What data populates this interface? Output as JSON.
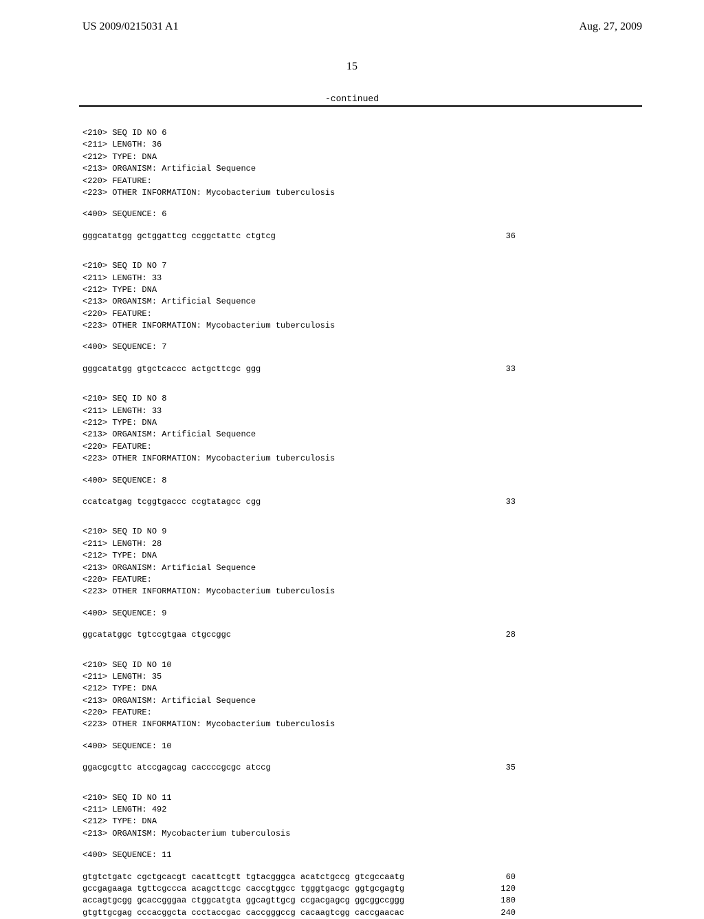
{
  "header": {
    "left": "US 2009/0215031 A1",
    "right": "Aug. 27, 2009"
  },
  "page_number": "15",
  "continued_text": "-continued",
  "blocks": [
    {
      "headers": [
        "<210> SEQ ID NO 6",
        "<211> LENGTH: 36",
        "<212> TYPE: DNA",
        "<213> ORGANISM: Artificial Sequence",
        "<220> FEATURE:",
        "<223> OTHER INFORMATION: Mycobacterium tuberculosis"
      ],
      "seq_label": "<400> SEQUENCE: 6",
      "rows": [
        {
          "text": "gggcatatgg gctggattcg ccggctattc ctgtcg",
          "len": "36"
        }
      ]
    },
    {
      "headers": [
        "<210> SEQ ID NO 7",
        "<211> LENGTH: 33",
        "<212> TYPE: DNA",
        "<213> ORGANISM: Artificial Sequence",
        "<220> FEATURE:",
        "<223> OTHER INFORMATION: Mycobacterium tuberculosis"
      ],
      "seq_label": "<400> SEQUENCE: 7",
      "rows": [
        {
          "text": "gggcatatgg gtgctcaccc actgcttcgc ggg",
          "len": "33"
        }
      ]
    },
    {
      "headers": [
        "<210> SEQ ID NO 8",
        "<211> LENGTH: 33",
        "<212> TYPE: DNA",
        "<213> ORGANISM: Artificial Sequence",
        "<220> FEATURE:",
        "<223> OTHER INFORMATION: Mycobacterium tuberculosis"
      ],
      "seq_label": "<400> SEQUENCE: 8",
      "rows": [
        {
          "text": "ccatcatgag tcggtgaccc ccgtatagcc cgg",
          "len": "33"
        }
      ]
    },
    {
      "headers": [
        "<210> SEQ ID NO 9",
        "<211> LENGTH: 28",
        "<212> TYPE: DNA",
        "<213> ORGANISM: Artificial Sequence",
        "<220> FEATURE:",
        "<223> OTHER INFORMATION: Mycobacterium tuberculosis"
      ],
      "seq_label": "<400> SEQUENCE: 9",
      "rows": [
        {
          "text": "ggcatatggc tgtccgtgaa ctgccggc",
          "len": "28"
        }
      ]
    },
    {
      "headers": [
        "<210> SEQ ID NO 10",
        "<211> LENGTH: 35",
        "<212> TYPE: DNA",
        "<213> ORGANISM: Artificial Sequence",
        "<220> FEATURE:",
        "<223> OTHER INFORMATION: Mycobacterium tuberculosis"
      ],
      "seq_label": "<400> SEQUENCE: 10",
      "rows": [
        {
          "text": "ggacgcgttc atccgagcag caccccgcgc atccg",
          "len": "35"
        }
      ]
    },
    {
      "headers": [
        "<210> SEQ ID NO 11",
        "<211> LENGTH: 492",
        "<212> TYPE: DNA",
        "<213> ORGANISM: Mycobacterium tuberculosis"
      ],
      "seq_label": "<400> SEQUENCE: 11",
      "rows": [
        {
          "text": "gtgtctgatc cgctgcacgt cacattcgtt tgtacgggca acatctgccg gtcgccaatg",
          "len": "60"
        },
        {
          "text": "gccgagaaga tgttcgccca acagcttcgc caccgtggcc tgggtgacgc ggtgcgagtg",
          "len": "120"
        },
        {
          "text": "accagtgcgg gcaccgggaa ctggcatgta ggcagttgcg ccgacgagcg ggcggccggg",
          "len": "180"
        },
        {
          "text": "gtgttgcgag cccacggcta ccctaccgac caccgggccg cacaagtcgg caccgaacac",
          "len": "240"
        }
      ]
    }
  ]
}
